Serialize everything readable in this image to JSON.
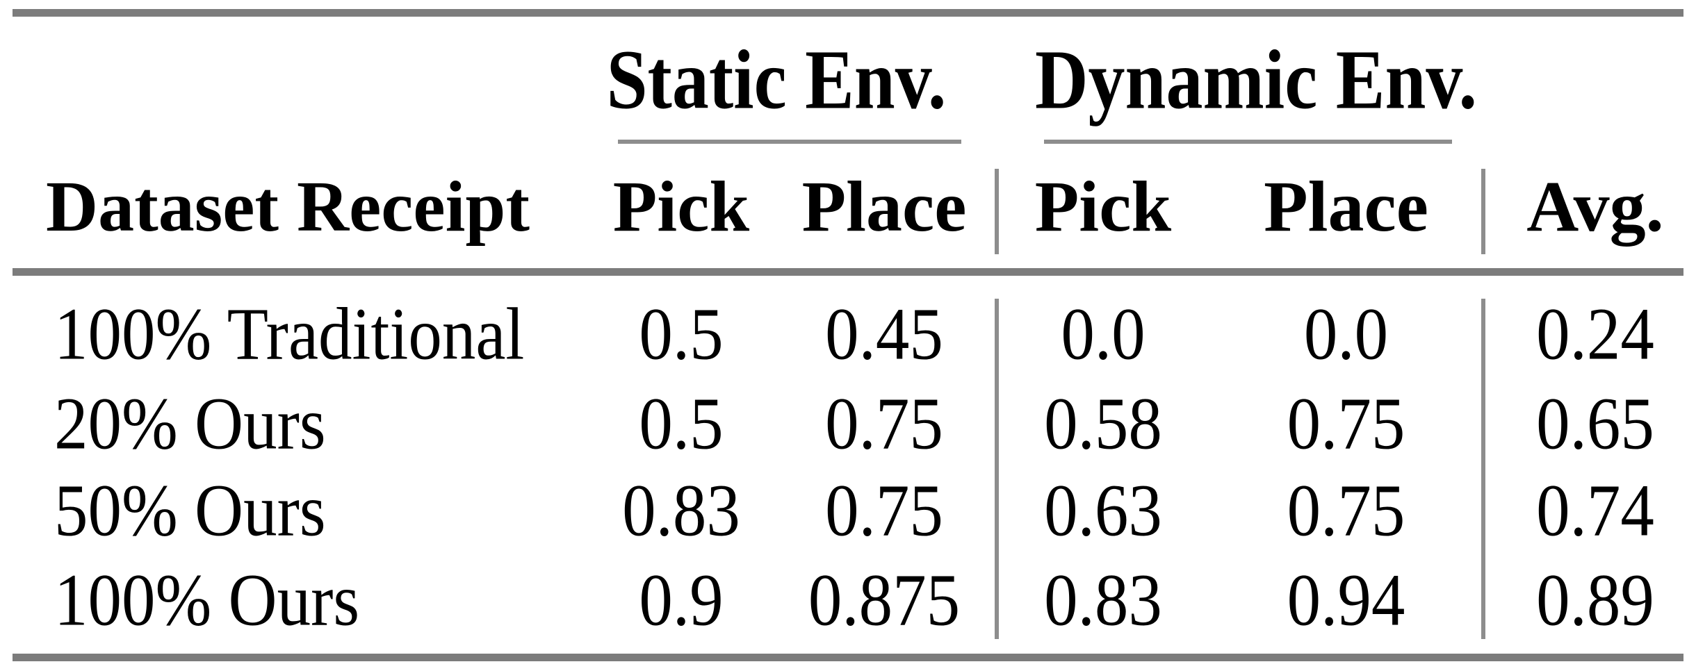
{
  "figure": {
    "background": "#ffffff",
    "text_color": "#000000",
    "rule_color_heavy": "#7c7c7c",
    "rule_color_light": "#8d8d8d"
  },
  "table": {
    "row_header": "Dataset Receipt",
    "avg_header": "Avg.",
    "groups": [
      {
        "label": "Static Env.",
        "columns": [
          "Pick",
          "Place"
        ]
      },
      {
        "label": "Dynamic Env.",
        "columns": [
          "Pick",
          "Place"
        ]
      }
    ],
    "rows": [
      {
        "label": "100% Traditional",
        "values": [
          "0.5",
          "0.45",
          "0.0",
          "0.0",
          "0.24"
        ]
      },
      {
        "label": "20% Ours",
        "values": [
          "0.5",
          "0.75",
          "0.58",
          "0.75",
          "0.65"
        ]
      },
      {
        "label": "50% Ours",
        "values": [
          "0.83",
          "0.75",
          "0.63",
          "0.75",
          "0.74"
        ]
      },
      {
        "label": "100% Ours",
        "values": [
          "0.9",
          "0.875",
          "0.83",
          "0.94",
          "0.89"
        ]
      }
    ]
  }
}
